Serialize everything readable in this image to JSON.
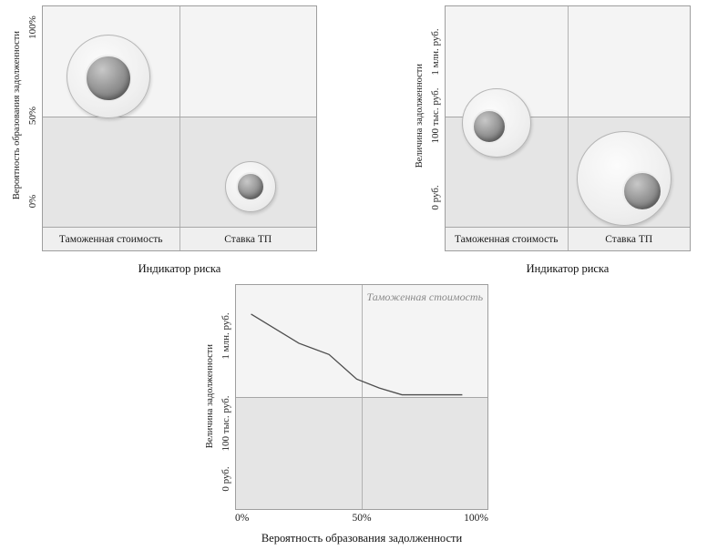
{
  "chart_data": [
    {
      "id": "top_left",
      "type": "bubble-quadrant",
      "title": "",
      "xlabel": "Индикатор риска",
      "ylabel": "Вероятность  образования задолженности",
      "yticks": [
        "100%",
        "50%",
        "0%"
      ],
      "categories": [
        "Таможенная стоимость",
        "Ставка ТП"
      ],
      "grid": "quadrant (midlines at 50%), lower half shaded",
      "bubbles": [
        {
          "category": "Таможенная стоимость",
          "quadrant": "top-left",
          "x_pct": 24,
          "y_pct": 32,
          "outer_d": 92,
          "inner_d": 52,
          "inner_dx": 0,
          "inner_dy": 2
        },
        {
          "category": "Ставка ТП",
          "quadrant": "bottom-right",
          "x_pct": 76,
          "y_pct": 82,
          "outer_d": 56,
          "inner_d": 32,
          "inner_dx": 0,
          "inner_dy": 0
        }
      ]
    },
    {
      "id": "top_right",
      "type": "bubble-quadrant",
      "title": "",
      "xlabel": "Индикатор риска",
      "ylabel": "Величина задолженности",
      "yticks": [
        "1 млн. руб.",
        "100 тыс. руб.",
        "0 руб."
      ],
      "categories": [
        "Таможенная стоимость",
        "Ставка ТП"
      ],
      "grid": "quadrant (midlines at 50%), lower half shaded",
      "bubbles": [
        {
          "category": "Таможенная стоимость",
          "quadrant": "middle-left",
          "x_pct": 21,
          "y_pct": 53,
          "outer_d": 76,
          "inner_d": 38,
          "inner_dx": -8,
          "inner_dy": 4
        },
        {
          "category": "Ставка ТП",
          "quadrant": "bottom-right",
          "x_pct": 73,
          "y_pct": 78,
          "outer_d": 104,
          "inner_d": 44,
          "inner_dx": 20,
          "inner_dy": 14
        }
      ]
    },
    {
      "id": "bottom",
      "type": "line",
      "title": "",
      "xlabel": "Вероятность  образования задолженности",
      "ylabel": "Величина задолженности",
      "xticks": [
        "0%",
        "50%",
        "100%"
      ],
      "yticks": [
        "1 млн. руб.",
        "100 тыс. руб.",
        "0 руб."
      ],
      "legend": "Таможенная стоимость",
      "legend_position": "top-right-inside",
      "grid": "quadrant (midlines at 50%), lower half shaded",
      "series": [
        {
          "name": "Таможенная стоимость",
          "points_pct": [
            [
              6,
              13
            ],
            [
              25,
              26
            ],
            [
              37,
              31
            ],
            [
              48,
              42
            ],
            [
              57,
              46
            ],
            [
              66,
              49
            ],
            [
              90,
              49
            ]
          ]
        }
      ]
    }
  ]
}
